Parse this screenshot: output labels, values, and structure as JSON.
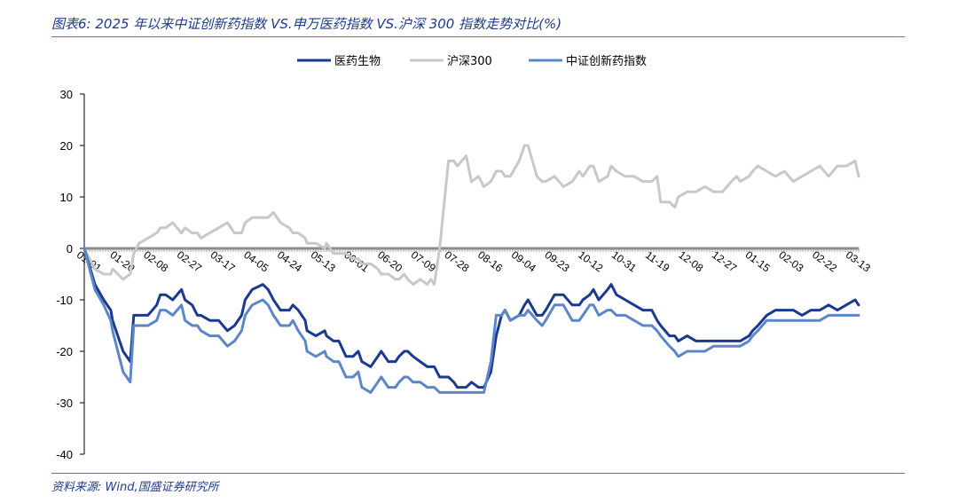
{
  "header": {
    "title": "图表6:  2025 年以来中证创新药指数 VS.申万医药指数 VS.沪深 300 指数走势对比(%)"
  },
  "footer": {
    "source": "资料来源:  Wind,国盛证券研究所"
  },
  "colors": {
    "series_1": "#1a3a8f",
    "series_2": "#c8c8c8",
    "series_3": "#5c86c8",
    "zero_line": "#8c8c8c",
    "rule": "#5b76b8"
  },
  "chart_data": {
    "type": "line",
    "title": "",
    "xlabel": "",
    "ylabel": "",
    "ylim": [
      -40,
      30
    ],
    "yticks": [
      30,
      20,
      10,
      0,
      -10,
      -20,
      -30,
      -40
    ],
    "grid": false,
    "legend_position": "top-center",
    "x_labels": [
      "01-01",
      "01-20",
      "02-08",
      "02-27",
      "03-17",
      "04-05",
      "04-24",
      "05-13",
      "06-01",
      "06-20",
      "07-09",
      "07-28",
      "08-16",
      "09-04",
      "09-23",
      "10-12",
      "10-31",
      "11-19",
      "12-08",
      "12-27",
      "01-15",
      "02-03",
      "02-22",
      "03-13"
    ],
    "x": [
      0,
      6,
      11,
      15,
      16,
      22,
      26,
      28,
      31,
      36,
      41,
      43,
      46,
      50,
      55,
      57,
      61,
      64,
      66,
      71,
      76,
      81,
      85,
      89,
      91,
      95,
      101,
      104,
      107,
      111,
      116,
      118,
      121,
      125,
      126,
      131,
      136,
      137,
      141,
      144,
      148,
      152,
      155,
      157,
      162,
      166,
      168,
      172,
      176,
      178,
      181,
      183,
      186,
      190,
      194,
      196,
      198,
      201,
      206,
      209,
      211,
      216,
      219,
      223,
      226,
      230,
      233,
      236,
      238,
      241,
      246,
      249,
      251,
      256,
      259,
      261,
      266,
      271,
      276,
      280,
      282,
      286,
      288,
      291,
      296,
      298,
      301,
      306,
      311,
      316,
      321,
      324,
      326,
      331,
      334,
      336,
      341,
      346,
      351,
      356,
      361,
      366,
      369,
      371,
      376,
      378,
      381,
      386,
      391,
      396,
      401,
      406,
      411,
      416,
      421,
      426,
      431,
      436,
      438
    ],
    "series": [
      {
        "name": "医药生物",
        "values": [
          0,
          -7,
          -10,
          -12,
          -14,
          -20,
          -22,
          -13,
          -13,
          -13,
          -11,
          -9,
          -9,
          -10,
          -8,
          -10,
          -11,
          -13,
          -13,
          -14,
          -14,
          -16,
          -15,
          -13,
          -10,
          -8,
          -7,
          -8,
          -10,
          -12,
          -12,
          -11,
          -12,
          -14,
          -16,
          -17,
          -16,
          -17,
          -18,
          -18,
          -21,
          -21,
          -20,
          -22,
          -23,
          -21,
          -20,
          -22,
          -22,
          -21,
          -20,
          -20,
          -21,
          -22,
          -23,
          -23,
          -23,
          -25,
          -25,
          -26,
          -27,
          -27,
          -26,
          -27,
          -27,
          -24,
          -17,
          -13,
          -12,
          -14,
          -13,
          -11,
          -10,
          -13,
          -13,
          -12,
          -9,
          -9,
          -11,
          -11,
          -10,
          -9,
          -8,
          -10,
          -8,
          -7,
          -9,
          -10,
          -11,
          -12,
          -12,
          -14,
          -15,
          -17,
          -17,
          -18,
          -17,
          -18,
          -18,
          -18,
          -18,
          -18,
          -18,
          -18,
          -17,
          -16,
          -15,
          -13,
          -12,
          -12,
          -12,
          -13,
          -12,
          -12,
          -11,
          -12,
          -11,
          -10,
          -11
        ]
      },
      {
        "name": "沪深300",
        "values": [
          0,
          -4,
          -5,
          -5,
          -4,
          -6,
          -5,
          -1,
          1,
          2,
          3,
          4,
          4,
          5,
          3,
          4,
          3,
          3,
          2,
          3,
          4,
          5,
          3,
          3,
          5,
          6,
          6,
          6,
          7,
          5,
          4,
          3,
          3,
          2,
          1,
          1,
          0,
          1,
          -1,
          -1,
          -1,
          -2,
          -2,
          -3,
          -3,
          -4,
          -5,
          -5,
          -6,
          -6,
          -5,
          -6,
          -7,
          -6,
          -7,
          -6,
          -7,
          0,
          17,
          17,
          16,
          18,
          13,
          14,
          12,
          13,
          15,
          15,
          14,
          14,
          17,
          20,
          20,
          14,
          13,
          13,
          14,
          12,
          13,
          15,
          14,
          16,
          16,
          13,
          14,
          16,
          15,
          14,
          14,
          13,
          13,
          14,
          9,
          9,
          8,
          10,
          11,
          11,
          12,
          11,
          11,
          13,
          14,
          13,
          14,
          15,
          16,
          15,
          14,
          15,
          13,
          14,
          15,
          16,
          14,
          16,
          16,
          17,
          14
        ]
      },
      {
        "name": "中证创新药指数",
        "values": [
          0,
          -8,
          -11,
          -14,
          -16,
          -24,
          -26,
          -15,
          -15,
          -15,
          -14,
          -12,
          -12,
          -13,
          -11,
          -14,
          -15,
          -15,
          -16,
          -17,
          -17,
          -19,
          -18,
          -16,
          -13,
          -11,
          -10,
          -11,
          -13,
          -15,
          -15,
          -14,
          -16,
          -18,
          -20,
          -21,
          -20,
          -21,
          -22,
          -22,
          -25,
          -25,
          -24,
          -27,
          -28,
          -26,
          -25,
          -27,
          -27,
          -26,
          -25,
          -25,
          -26,
          -26,
          -27,
          -27,
          -27,
          -28,
          -28,
          -28,
          -28,
          -28,
          -28,
          -28,
          -28,
          -22,
          -13,
          -13,
          -12,
          -14,
          -13,
          -13,
          -12,
          -14,
          -15,
          -14,
          -11,
          -11,
          -14,
          -14,
          -13,
          -11,
          -11,
          -13,
          -12,
          -12,
          -13,
          -13,
          -14,
          -15,
          -15,
          -16,
          -17,
          -19,
          -20,
          -21,
          -20,
          -20,
          -20,
          -19,
          -19,
          -19,
          -19,
          -19,
          -18,
          -17,
          -16,
          -14,
          -14,
          -14,
          -14,
          -14,
          -14,
          -14,
          -13,
          -13,
          -13,
          -13,
          -13
        ]
      }
    ]
  }
}
